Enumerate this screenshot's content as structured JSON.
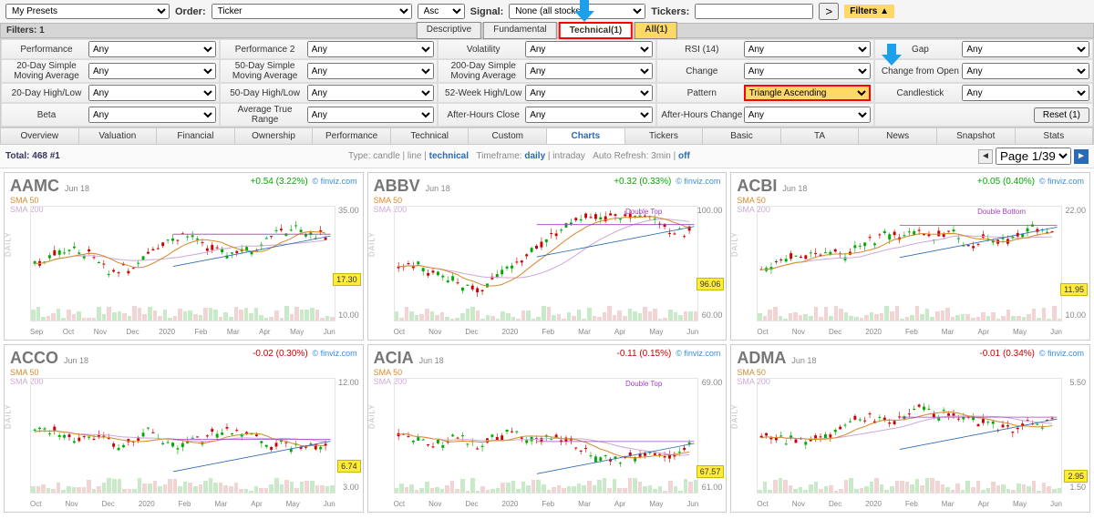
{
  "topbar": {
    "presets": "My Presets",
    "order_label": "Order:",
    "order": "Ticker",
    "direction": "Asc",
    "signal_label": "Signal:",
    "signal": "None (all stocks)",
    "tickers_label": "Tickers:",
    "tickers_value": "",
    "go": ">",
    "filters_link": "Filters ▲"
  },
  "filters_bar": {
    "count_label": "Filters: 1",
    "tabs": {
      "descriptive": "Descriptive",
      "fundamental": "Fundamental",
      "technical": "Technical(1)",
      "all": "All(1)"
    }
  },
  "filter_rows": [
    [
      {
        "l": "Performance",
        "v": "Any"
      },
      {
        "l": "Performance 2",
        "v": "Any"
      },
      {
        "l": "Volatility",
        "v": "Any"
      },
      {
        "l": "RSI (14)",
        "v": "Any"
      },
      {
        "l": "Gap",
        "v": "Any"
      }
    ],
    [
      {
        "l": "20-Day Simple Moving Average",
        "v": "Any"
      },
      {
        "l": "50-Day Simple Moving Average",
        "v": "Any"
      },
      {
        "l": "200-Day Simple Moving Average",
        "v": "Any"
      },
      {
        "l": "Change",
        "v": "Any"
      },
      {
        "l": "Change from Open",
        "v": "Any"
      }
    ],
    [
      {
        "l": "20-Day High/Low",
        "v": "Any"
      },
      {
        "l": "50-Day High/Low",
        "v": "Any"
      },
      {
        "l": "52-Week High/Low",
        "v": "Any"
      },
      {
        "l": "Pattern",
        "v": "Triangle Ascending",
        "hl": true
      },
      {
        "l": "Candlestick",
        "v": "Any"
      }
    ],
    [
      {
        "l": "Beta",
        "v": "Any"
      },
      {
        "l": "Average True Range",
        "v": "Any"
      },
      {
        "l": "After-Hours Close",
        "v": "Any"
      },
      {
        "l": "After-Hours Change",
        "v": "Any"
      },
      {
        "l": "",
        "v": "",
        "reset": "Reset (1)"
      }
    ]
  ],
  "viewtabs": [
    "Overview",
    "Valuation",
    "Financial",
    "Ownership",
    "Performance",
    "Technical",
    "Custom",
    "Charts",
    "Tickers",
    "Basic",
    "TA",
    "News",
    "Snapshot",
    "Stats"
  ],
  "viewtabs_active": "Charts",
  "meta": {
    "total": "Total: 468 #1",
    "type_label": "Type:",
    "types": [
      "candle",
      "line",
      "technical"
    ],
    "type_active": "technical",
    "timeframe_label": "Timeframe:",
    "timeframes": [
      "daily",
      "intraday"
    ],
    "timeframe_active": "daily",
    "refresh_label": "Auto Refresh:",
    "refresh": [
      "3min",
      "off"
    ],
    "pager": "Page 1/39"
  },
  "charts": [
    {
      "tkr": "AAMC",
      "date": "Jun 18",
      "chg": "+0.54 (3.22%)",
      "dir": "up",
      "price": "17.30",
      "ymax": "35.00",
      "ymin": "10.00",
      "months": [
        "Sep",
        "Oct",
        "Nov",
        "Dec",
        "2020",
        "Feb",
        "Mar",
        "Apr",
        "May",
        "Jun"
      ],
      "pattern": ""
    },
    {
      "tkr": "ABBV",
      "date": "Jun 18",
      "chg": "+0.32 (0.33%)",
      "dir": "up",
      "price": "96.06",
      "ymax": "100.00",
      "ymin": "60.00",
      "months": [
        "Oct",
        "Nov",
        "Dec",
        "2020",
        "Feb",
        "Mar",
        "Apr",
        "May",
        "Jun"
      ],
      "pattern": "Double Top"
    },
    {
      "tkr": "ACBI",
      "date": "Jun 18",
      "chg": "+0.05 (0.40%)",
      "dir": "up",
      "price": "11.95",
      "ymax": "22.00",
      "ymin": "10.00",
      "months": [
        "Oct",
        "Nov",
        "Dec",
        "2020",
        "Feb",
        "Mar",
        "Apr",
        "May",
        "Jun"
      ],
      "pattern": "Double Bottom"
    },
    {
      "tkr": "ACCO",
      "date": "Jun 18",
      "chg": "-0.02 (0.30%)",
      "dir": "dn",
      "price": "6.74",
      "ymax": "12.00",
      "ymin": "3.00",
      "months": [
        "Oct",
        "Nov",
        "Dec",
        "2020",
        "Feb",
        "Mar",
        "Apr",
        "May",
        "Jun"
      ],
      "pattern": ""
    },
    {
      "tkr": "ACIA",
      "date": "Jun 18",
      "chg": "-0.11 (0.15%)",
      "dir": "dn",
      "price": "67.57",
      "ymax": "69.00",
      "ymin": "61.00",
      "months": [
        "Oct",
        "Nov",
        "Dec",
        "2020",
        "Feb",
        "Mar",
        "Apr",
        "May",
        "Jun"
      ],
      "pattern": "Double Top"
    },
    {
      "tkr": "ADMA",
      "date": "Jun 18",
      "chg": "-0.01 (0.34%)",
      "dir": "dn",
      "price": "2.95",
      "ymax": "5.50",
      "ymin": "1.50",
      "months": [
        "Oct",
        "Nov",
        "Dec",
        "2020",
        "Feb",
        "Mar",
        "Apr",
        "May",
        "Jun"
      ],
      "pattern": ""
    }
  ],
  "labels": {
    "sma50": "SMA 50",
    "sma200": "SMA 200",
    "daily": "DAILY",
    "source": "© finviz.com"
  },
  "colors": {
    "up": "#0a0",
    "dn": "#c00",
    "sma50": "#d78b2d",
    "sma200": "#cfa9d8",
    "tag": "#ffeb3b",
    "arrow": "#1ca0e9",
    "hl": "#ffd966",
    "link": "#2b6bb5"
  }
}
